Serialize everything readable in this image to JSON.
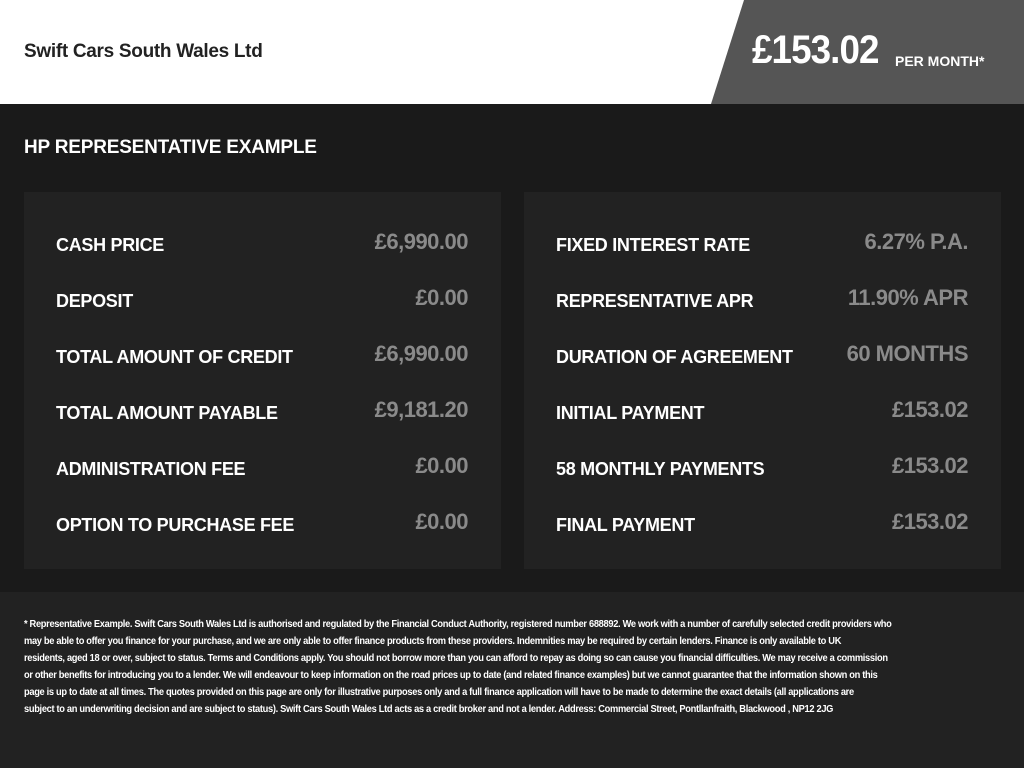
{
  "header": {
    "dealer_name": "Swift Cars South Wales Ltd",
    "monthly_price": "£153.02",
    "per_month_label": "PER MONTH*"
  },
  "section_title": "HP REPRESENTATIVE EXAMPLE",
  "left_panel": [
    {
      "label": "CASH PRICE",
      "value": "£6,990.00"
    },
    {
      "label": "DEPOSIT",
      "value": "£0.00"
    },
    {
      "label": "TOTAL AMOUNT OF CREDIT",
      "value": "£6,990.00"
    },
    {
      "label": "TOTAL AMOUNT PAYABLE",
      "value": "£9,181.20"
    },
    {
      "label": "ADMINISTRATION FEE",
      "value": "£0.00"
    },
    {
      "label": "OPTION TO PURCHASE FEE",
      "value": "£0.00"
    }
  ],
  "right_panel": [
    {
      "label": "FIXED INTEREST RATE",
      "value": "6.27% P.A."
    },
    {
      "label": "REPRESENTATIVE APR",
      "value": "11.90% APR"
    },
    {
      "label": "DURATION OF AGREEMENT",
      "value": "60 MONTHS"
    },
    {
      "label": "INITIAL PAYMENT",
      "value": "£153.02"
    },
    {
      "label": "58 MONTHLY PAYMENTS",
      "value": "£153.02"
    },
    {
      "label": "FINAL PAYMENT",
      "value": "£153.02"
    }
  ],
  "disclaimer_lines": [
    "* Representative Example. Swift Cars South Wales Ltd  is authorised and regulated by the Financial Conduct Authority, registered number 688892. We work with a number of carefully selected credit providers who",
    "may be able to offer you finance for your purchase, and we are only able to offer finance products from these providers. Indemnities may be required by certain lenders. Finance is only available to UK",
    "residents, aged 18 or over, subject to status. Terms and Conditions apply. You should not borrow more than you can afford to repay as doing so can cause you financial difficulties. We may receive a commission",
    "or other benefits for introducing you to a lender. We will endeavour to keep information on the road prices up to date (and related finance examples) but we cannot guarantee that the information shown on this",
    "page is up to date at all times. The quotes provided on this page are only for illustrative purposes only and a full finance application will have to be made to determine the exact details (all applications are",
    "subject to an underwriting decision and are subject to status). Swift Cars South Wales Ltd  acts as a credit broker and not a lender. Address: Commercial Street, Pontllanfraith, Blackwood , NP12 2JG"
  ],
  "colors": {
    "header_bg": "#ffffff",
    "badge_bg": "#555555",
    "page_bg": "#1a1a1a",
    "panel_bg": "#222222",
    "value_text": "#8a8a8a"
  }
}
